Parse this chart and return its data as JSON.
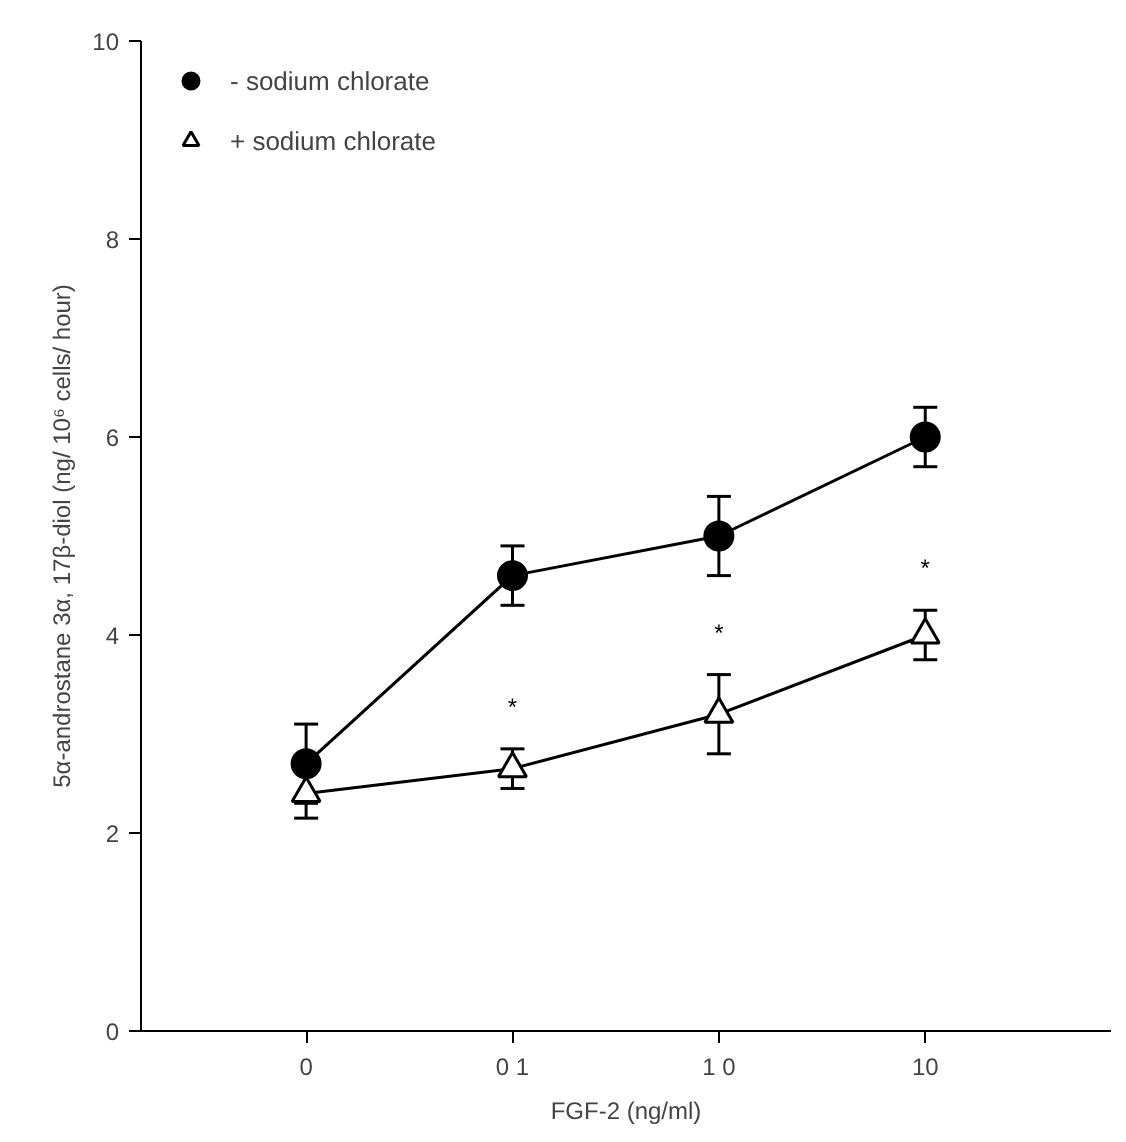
{
  "chart_data": {
    "type": "line",
    "xlabel": "FGF-2 (ng/ml)",
    "ylabel": "5α-androstane 3α, 17β-diol (ng/ 10⁶ cells/ hour)",
    "categories": [
      "0",
      "0 1",
      "1 0",
      "10"
    ],
    "series": [
      {
        "name": "- sodium chlorate",
        "color": "#000000",
        "marker": "circle",
        "values": [
          2.7,
          4.6,
          5.0,
          6.0
        ],
        "errors": [
          0.4,
          0.3,
          0.4,
          0.3
        ]
      },
      {
        "name": "+ sodium chlorate",
        "color": "#000000",
        "marker": "triangle",
        "values": [
          2.4,
          2.65,
          3.2,
          4.0
        ],
        "errors": [
          0.25,
          0.2,
          0.4,
          0.25
        ]
      }
    ],
    "annotations": [
      "*",
      "*",
      "*"
    ],
    "ylim": [
      0,
      10
    ],
    "yticks": [
      0,
      2,
      4,
      6,
      8,
      10
    ],
    "grid": false,
    "legend": "top left"
  }
}
